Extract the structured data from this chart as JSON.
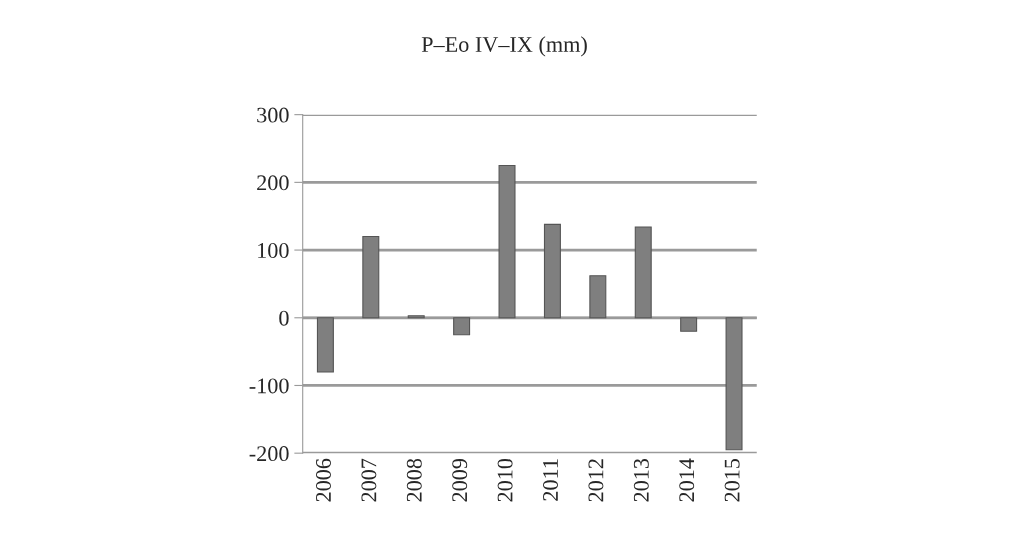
{
  "chart_data": {
    "type": "bar",
    "title": "P–Eo IV–IX (mm)",
    "categories": [
      "2006",
      "2007",
      "2008",
      "2009",
      "2010",
      "2011",
      "2012",
      "2013",
      "2014",
      "2015"
    ],
    "values": [
      -80,
      120,
      3,
      -25,
      225,
      138,
      62,
      134,
      -20,
      -195
    ],
    "color": "#7f7f7f",
    "ylim": [
      -200,
      300
    ],
    "yticks": [
      -200,
      -100,
      0,
      100,
      200,
      300
    ],
    "grid": "y",
    "legend": false
  }
}
